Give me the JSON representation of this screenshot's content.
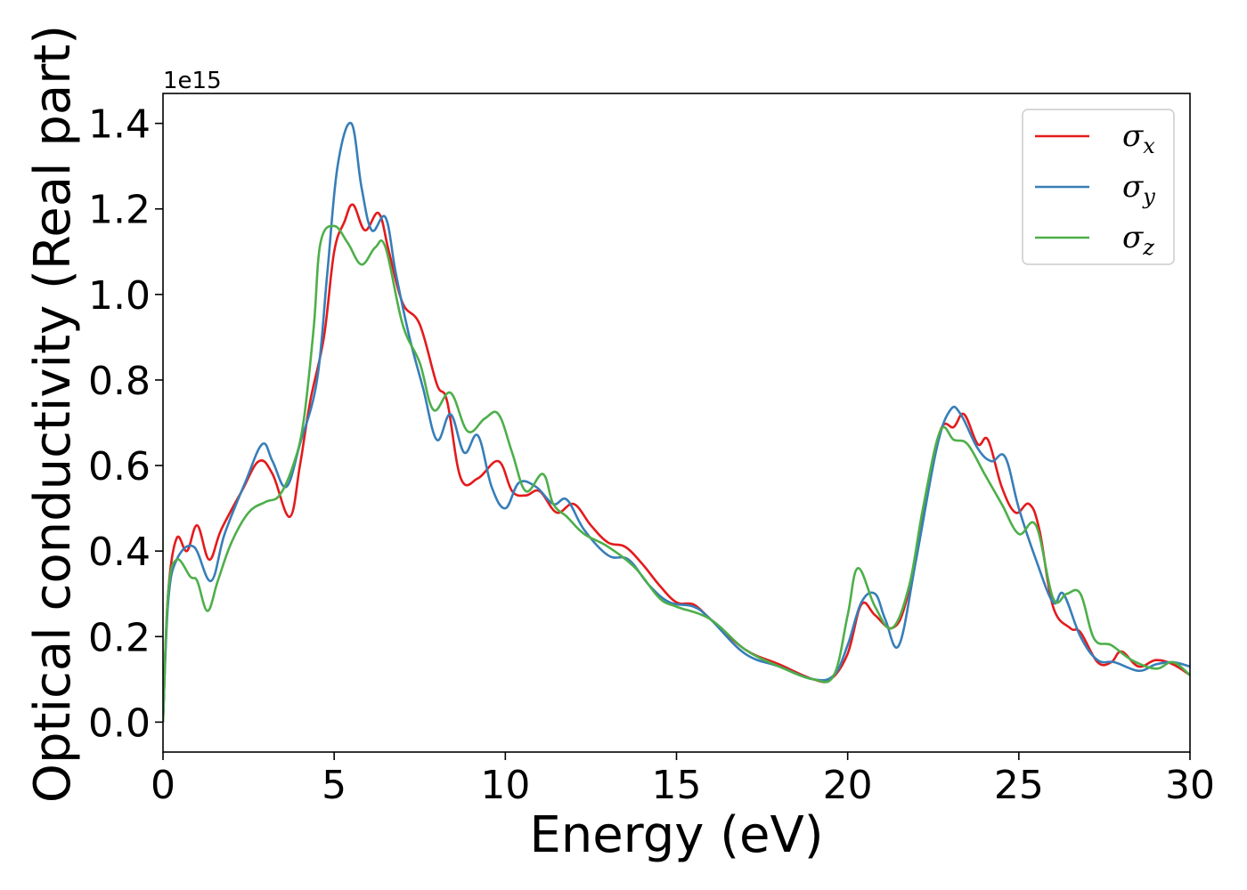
{
  "chart_data": {
    "type": "line",
    "xlabel": "Energy (eV)",
    "ylabel": "Optical conductivity (Real part)",
    "y_offset_label": "1e15",
    "xlim": [
      0,
      30
    ],
    "ylim": [
      -0.07,
      1.47
    ],
    "xticks": [
      0,
      5,
      10,
      15,
      20,
      25,
      30
    ],
    "xtick_labels": [
      "0",
      "5",
      "10",
      "15",
      "20",
      "25",
      "30"
    ],
    "yticks": [
      0.0,
      0.2,
      0.4,
      0.6,
      0.8,
      1.0,
      1.2,
      1.4
    ],
    "ytick_labels": [
      "0.0",
      "0.2",
      "0.4",
      "0.6",
      "0.8",
      "1.0",
      "1.2",
      "1.4"
    ],
    "grid": false,
    "legend_position": "top-right",
    "series": [
      {
        "name": "σx",
        "symbol": "σ",
        "subscript": "x",
        "color": "#e41a1c",
        "points": [
          [
            0,
            0.0
          ],
          [
            0.15,
            0.3
          ],
          [
            0.4,
            0.43
          ],
          [
            0.7,
            0.4
          ],
          [
            1.0,
            0.46
          ],
          [
            1.35,
            0.38
          ],
          [
            1.7,
            0.45
          ],
          [
            2.3,
            0.54
          ],
          [
            2.8,
            0.61
          ],
          [
            3.2,
            0.58
          ],
          [
            3.7,
            0.48
          ],
          [
            4.0,
            0.6
          ],
          [
            4.3,
            0.75
          ],
          [
            4.7,
            0.9
          ],
          [
            5.0,
            1.1
          ],
          [
            5.3,
            1.17
          ],
          [
            5.55,
            1.21
          ],
          [
            5.9,
            1.15
          ],
          [
            6.3,
            1.19
          ],
          [
            6.6,
            1.1
          ],
          [
            7.0,
            0.98
          ],
          [
            7.5,
            0.93
          ],
          [
            8.0,
            0.79
          ],
          [
            8.3,
            0.75
          ],
          [
            8.7,
            0.57
          ],
          [
            9.2,
            0.57
          ],
          [
            9.8,
            0.61
          ],
          [
            10.2,
            0.54
          ],
          [
            10.6,
            0.53
          ],
          [
            11.0,
            0.54
          ],
          [
            11.5,
            0.49
          ],
          [
            12.0,
            0.51
          ],
          [
            12.5,
            0.46
          ],
          [
            13.0,
            0.42
          ],
          [
            13.5,
            0.41
          ],
          [
            14.0,
            0.37
          ],
          [
            14.5,
            0.32
          ],
          [
            15.0,
            0.28
          ],
          [
            15.5,
            0.275
          ],
          [
            16.0,
            0.24
          ],
          [
            17.0,
            0.17
          ],
          [
            18.0,
            0.135
          ],
          [
            19.0,
            0.1
          ],
          [
            19.5,
            0.1
          ],
          [
            20.0,
            0.16
          ],
          [
            20.4,
            0.275
          ],
          [
            20.8,
            0.25
          ],
          [
            21.3,
            0.22
          ],
          [
            21.7,
            0.28
          ],
          [
            22.2,
            0.48
          ],
          [
            22.7,
            0.68
          ],
          [
            23.1,
            0.69
          ],
          [
            23.4,
            0.72
          ],
          [
            23.8,
            0.65
          ],
          [
            24.1,
            0.66
          ],
          [
            24.5,
            0.55
          ],
          [
            24.9,
            0.49
          ],
          [
            25.3,
            0.51
          ],
          [
            25.6,
            0.45
          ],
          [
            26.0,
            0.27
          ],
          [
            26.5,
            0.22
          ],
          [
            26.8,
            0.21
          ],
          [
            27.3,
            0.14
          ],
          [
            27.7,
            0.14
          ],
          [
            28.0,
            0.165
          ],
          [
            28.5,
            0.13
          ],
          [
            29.0,
            0.145
          ],
          [
            29.5,
            0.135
          ],
          [
            30.0,
            0.11
          ]
        ]
      },
      {
        "name": "σy",
        "symbol": "σ",
        "subscript": "y",
        "color": "#377eb8",
        "points": [
          [
            0,
            0.0
          ],
          [
            0.15,
            0.28
          ],
          [
            0.4,
            0.38
          ],
          [
            0.9,
            0.41
          ],
          [
            1.4,
            0.33
          ],
          [
            1.8,
            0.44
          ],
          [
            2.4,
            0.56
          ],
          [
            2.9,
            0.65
          ],
          [
            3.2,
            0.61
          ],
          [
            3.6,
            0.55
          ],
          [
            4.0,
            0.65
          ],
          [
            4.5,
            0.8
          ],
          [
            4.8,
            1.05
          ],
          [
            5.1,
            1.3
          ],
          [
            5.5,
            1.4
          ],
          [
            5.8,
            1.25
          ],
          [
            6.1,
            1.15
          ],
          [
            6.5,
            1.18
          ],
          [
            6.8,
            1.05
          ],
          [
            7.2,
            0.9
          ],
          [
            7.6,
            0.78
          ],
          [
            8.0,
            0.66
          ],
          [
            8.4,
            0.72
          ],
          [
            8.8,
            0.63
          ],
          [
            9.2,
            0.67
          ],
          [
            9.6,
            0.55
          ],
          [
            10.0,
            0.5
          ],
          [
            10.4,
            0.56
          ],
          [
            10.9,
            0.55
          ],
          [
            11.4,
            0.51
          ],
          [
            11.8,
            0.52
          ],
          [
            12.3,
            0.45
          ],
          [
            13.0,
            0.39
          ],
          [
            13.6,
            0.38
          ],
          [
            14.2,
            0.32
          ],
          [
            14.8,
            0.28
          ],
          [
            15.5,
            0.27
          ],
          [
            16.0,
            0.24
          ],
          [
            17.0,
            0.16
          ],
          [
            18.0,
            0.13
          ],
          [
            19.0,
            0.1
          ],
          [
            19.6,
            0.11
          ],
          [
            20.0,
            0.18
          ],
          [
            20.4,
            0.28
          ],
          [
            20.8,
            0.3
          ],
          [
            21.1,
            0.24
          ],
          [
            21.5,
            0.18
          ],
          [
            22.0,
            0.38
          ],
          [
            22.6,
            0.64
          ],
          [
            23.0,
            0.73
          ],
          [
            23.3,
            0.72
          ],
          [
            23.8,
            0.64
          ],
          [
            24.2,
            0.61
          ],
          [
            24.6,
            0.62
          ],
          [
            25.0,
            0.5
          ],
          [
            25.5,
            0.38
          ],
          [
            26.0,
            0.28
          ],
          [
            26.3,
            0.3
          ],
          [
            26.8,
            0.2
          ],
          [
            27.3,
            0.145
          ],
          [
            27.8,
            0.14
          ],
          [
            28.5,
            0.12
          ],
          [
            29.0,
            0.135
          ],
          [
            29.5,
            0.14
          ],
          [
            30.0,
            0.13
          ]
        ]
      },
      {
        "name": "σz",
        "symbol": "σ",
        "subscript": "z",
        "color": "#4daf4a",
        "points": [
          [
            0,
            0.0
          ],
          [
            0.15,
            0.3
          ],
          [
            0.4,
            0.38
          ],
          [
            0.8,
            0.34
          ],
          [
            1.0,
            0.33
          ],
          [
            1.3,
            0.26
          ],
          [
            1.6,
            0.33
          ],
          [
            2.0,
            0.42
          ],
          [
            2.5,
            0.49
          ],
          [
            3.0,
            0.515
          ],
          [
            3.4,
            0.53
          ],
          [
            3.8,
            0.6
          ],
          [
            4.1,
            0.7
          ],
          [
            4.4,
            0.92
          ],
          [
            4.6,
            1.12
          ],
          [
            5.0,
            1.16
          ],
          [
            5.4,
            1.12
          ],
          [
            5.8,
            1.07
          ],
          [
            6.2,
            1.11
          ],
          [
            6.5,
            1.11
          ],
          [
            7.0,
            0.93
          ],
          [
            7.5,
            0.84
          ],
          [
            7.9,
            0.73
          ],
          [
            8.4,
            0.77
          ],
          [
            8.9,
            0.68
          ],
          [
            9.4,
            0.71
          ],
          [
            9.8,
            0.72
          ],
          [
            10.2,
            0.63
          ],
          [
            10.6,
            0.54
          ],
          [
            11.1,
            0.58
          ],
          [
            11.4,
            0.51
          ],
          [
            11.8,
            0.48
          ],
          [
            12.3,
            0.44
          ],
          [
            13.0,
            0.41
          ],
          [
            13.8,
            0.36
          ],
          [
            14.5,
            0.29
          ],
          [
            15.0,
            0.27
          ],
          [
            16.0,
            0.24
          ],
          [
            17.0,
            0.17
          ],
          [
            18.0,
            0.13
          ],
          [
            19.0,
            0.1
          ],
          [
            19.6,
            0.11
          ],
          [
            20.0,
            0.25
          ],
          [
            20.3,
            0.36
          ],
          [
            20.8,
            0.27
          ],
          [
            21.3,
            0.22
          ],
          [
            21.8,
            0.32
          ],
          [
            22.2,
            0.5
          ],
          [
            22.7,
            0.68
          ],
          [
            23.1,
            0.66
          ],
          [
            23.5,
            0.65
          ],
          [
            24.0,
            0.58
          ],
          [
            24.5,
            0.51
          ],
          [
            25.0,
            0.44
          ],
          [
            25.5,
            0.46
          ],
          [
            26.0,
            0.29
          ],
          [
            26.4,
            0.3
          ],
          [
            26.8,
            0.3
          ],
          [
            27.2,
            0.195
          ],
          [
            27.7,
            0.18
          ],
          [
            28.3,
            0.145
          ],
          [
            29.0,
            0.125
          ],
          [
            29.5,
            0.14
          ],
          [
            30.0,
            0.11
          ]
        ]
      }
    ]
  }
}
